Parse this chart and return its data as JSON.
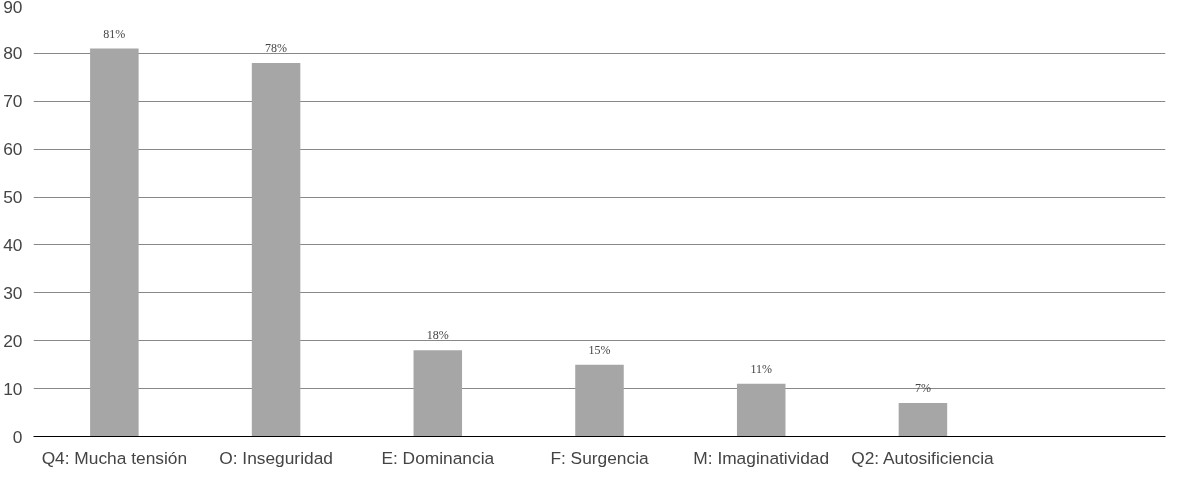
{
  "chart_data": {
    "type": "bar",
    "categories": [
      "Q4: Mucha tensión",
      "O: Inseguridad",
      "E: Dominancia",
      "F: Surgencia",
      "M: Imaginatividad",
      "Q2: Autosificiencia",
      null
    ],
    "values": [
      81,
      78,
      18,
      15,
      11,
      7,
      null
    ],
    "value_labels": [
      "81%",
      "78%",
      "18%",
      "15%",
      "11%",
      "7%",
      null
    ],
    "color": "#a6a6a6",
    "ylim": [
      0,
      90
    ],
    "yticks": [
      0,
      10,
      20,
      30,
      40,
      50,
      60,
      70,
      80,
      90
    ],
    "grid": "y"
  }
}
